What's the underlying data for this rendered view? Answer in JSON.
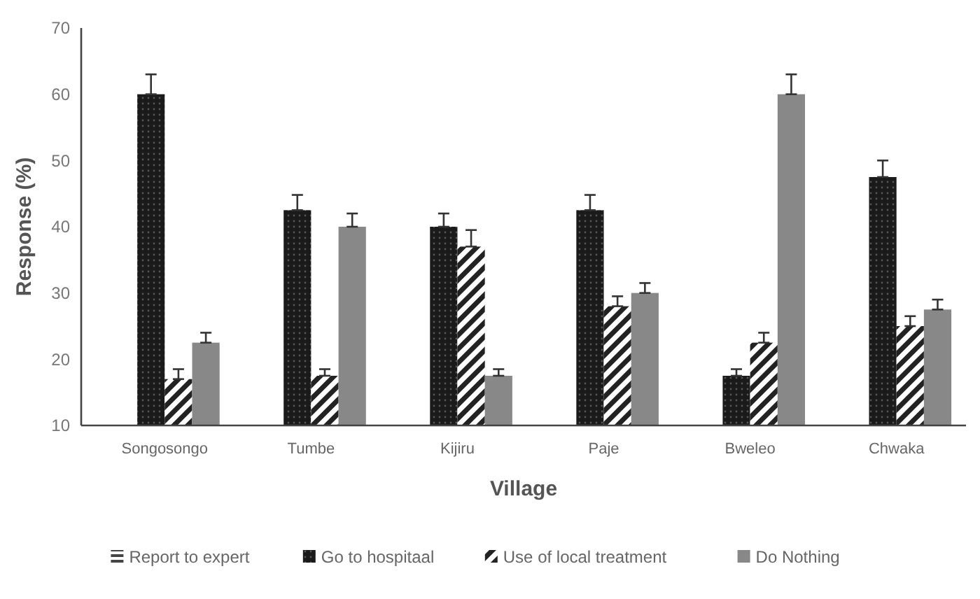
{
  "chart_data": {
    "type": "bar",
    "xlabel": "Village",
    "ylabel": "Response (%)",
    "categories": [
      "Songosongo",
      "Tumbe",
      "Kijiru",
      "Paje",
      "Bweleo",
      "Chwaka"
    ],
    "ylim": [
      10,
      70
    ],
    "yticks": [
      10,
      20,
      30,
      40,
      50,
      60,
      70
    ],
    "legend": "bottom",
    "grid": false,
    "series": [
      {
        "name": "Report to expert",
        "color": "#444444",
        "values": [
          null,
          null,
          null,
          null,
          null,
          null
        ]
      },
      {
        "name": "Go to hospitaal",
        "color": "#1a1a1a",
        "values": [
          60,
          42.5,
          40,
          42.5,
          17.5,
          47.5
        ],
        "errors": [
          [
            60,
            63
          ],
          [
            42.5,
            44.8
          ],
          [
            40,
            42
          ],
          [
            42.5,
            44.8
          ],
          [
            17.5,
            18.5
          ],
          [
            47.5,
            50
          ]
        ]
      },
      {
        "name": "Use of local treatment",
        "color": "#222222",
        "values": [
          17,
          17.5,
          37,
          28,
          22.5,
          25
        ],
        "errors": [
          [
            17,
            18.5
          ],
          [
            17.5,
            18.5
          ],
          [
            37,
            39.5
          ],
          [
            28,
            29.5
          ],
          [
            22.5,
            24
          ],
          [
            25,
            26.5
          ]
        ]
      },
      {
        "name": "Do Nothing",
        "color": "#888888",
        "values": [
          22.5,
          40,
          17.5,
          30,
          60,
          27.5
        ],
        "errors": [
          [
            22.5,
            24
          ],
          [
            40,
            42
          ],
          [
            17.5,
            18.5
          ],
          [
            30,
            31.5
          ],
          [
            60,
            63
          ],
          [
            27.5,
            29
          ]
        ]
      }
    ]
  }
}
